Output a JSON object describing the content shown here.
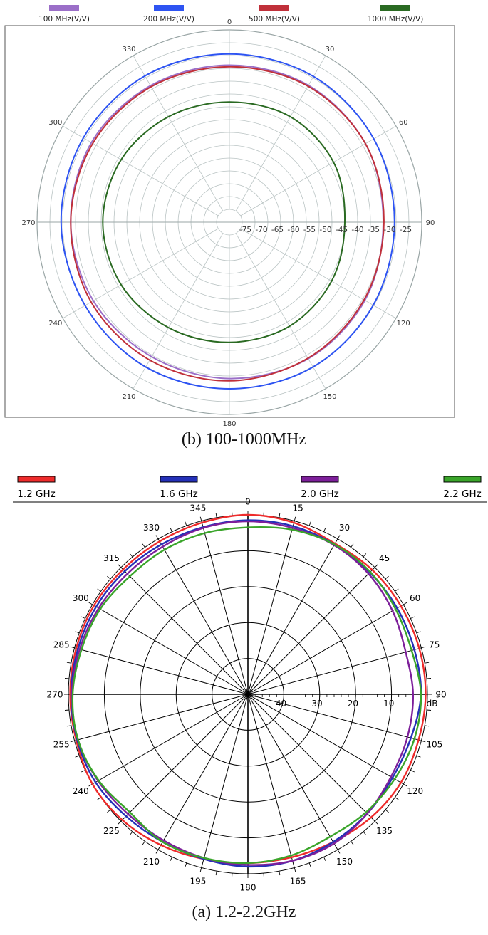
{
  "captions": {
    "top": "(b)    100-1000MHz",
    "bottom": "(a)    1.2-2.2GHz"
  },
  "chart_data": [
    {
      "type": "polar-line",
      "radial_labels": [
        "-75",
        "-70",
        "-65",
        "-60",
        "-55",
        "-50",
        "-45",
        "-40",
        "-35",
        "-30",
        "-25"
      ],
      "radial_range": [
        -80,
        -20
      ],
      "angle_labels": [
        "0",
        "30",
        "60",
        "90",
        "120",
        "150",
        "180",
        "210",
        "240",
        "270",
        "300",
        "330"
      ],
      "grid": true,
      "legend_position": "top",
      "series": [
        {
          "name": "100 MHz(V/V)",
          "color": "#9b6fc8",
          "angles": [
            0,
            30,
            60,
            90,
            120,
            150,
            180,
            210,
            240,
            270,
            300,
            330
          ],
          "values": [
            -31,
            -30.7,
            -31,
            -32,
            -31.2,
            -30.8,
            -31.2,
            -31.5,
            -31,
            -30.5,
            -30.3,
            -30.8
          ]
        },
        {
          "name": "200 MHz(V/V)",
          "color": "#2e54f2",
          "angles": [
            0,
            30,
            60,
            90,
            120,
            150,
            180,
            210,
            240,
            270,
            300,
            330
          ],
          "values": [
            -27.5,
            -27.5,
            -28,
            -28.5,
            -28.2,
            -27.8,
            -28,
            -27.8,
            -28,
            -27.5,
            -27.4,
            -27.3
          ]
        },
        {
          "name": "500 MHz(V/V)",
          "color": "#c0303a",
          "angles": [
            0,
            30,
            60,
            90,
            120,
            150,
            180,
            210,
            240,
            270,
            300,
            330
          ],
          "values": [
            -31.5,
            -31,
            -31,
            -31.8,
            -31.5,
            -31,
            -30.5,
            -30.3,
            -30.2,
            -30.5,
            -30.8,
            -31.2
          ]
        },
        {
          "name": "1000 MHz(V/V)",
          "color": "#2a6a22",
          "angles": [
            0,
            30,
            60,
            90,
            120,
            150,
            180,
            210,
            240,
            270,
            300,
            330
          ],
          "values": [
            -42.5,
            -42,
            -42.5,
            -44,
            -43.2,
            -42.5,
            -42.5,
            -42,
            -41,
            -40.5,
            -41,
            -42
          ]
        }
      ]
    },
    {
      "type": "polar-line",
      "radial_labels": [
        "-40",
        "-30",
        "-20",
        "-10",
        "dB"
      ],
      "radial_range": [
        -50,
        0
      ],
      "angle_labels": [
        "0",
        "15",
        "30",
        "45",
        "60",
        "75",
        "90",
        "105",
        "120",
        "135",
        "150",
        "165",
        "180",
        "195",
        "210",
        "225",
        "240",
        "255",
        "270",
        "285",
        "300",
        "315",
        "330",
        "345"
      ],
      "grid": true,
      "legend_position": "top",
      "series": [
        {
          "name": "1.2 GHz",
          "color": "#ee2b2b",
          "angles": [
            0,
            15,
            30,
            45,
            60,
            75,
            90,
            105,
            120,
            135,
            150,
            165,
            180,
            195,
            210,
            225,
            240,
            255,
            270,
            285,
            300,
            315,
            330,
            345
          ],
          "values": [
            0,
            -0.5,
            -1.5,
            -1,
            -0.8,
            -0.6,
            -0.5,
            -0.8,
            -0.8,
            -1.5,
            -2.5,
            -3,
            -3,
            -2.5,
            -1.5,
            -0.5,
            0,
            -0.5,
            -0.5,
            -0.5,
            -0.5,
            -0.8,
            -0.8,
            -0.5
          ]
        },
        {
          "name": "1.6 GHz",
          "color": "#2430b8",
          "angles": [
            0,
            15,
            30,
            45,
            60,
            75,
            90,
            105,
            120,
            135,
            150,
            165,
            180,
            195,
            210,
            225,
            240,
            255,
            270,
            285,
            300,
            315,
            330,
            345
          ],
          "values": [
            -1.5,
            -1.5,
            -1.8,
            -2,
            -2,
            -2,
            -1.8,
            -3,
            -3.5,
            -3,
            -2.5,
            -2,
            -2,
            -2.5,
            -2.5,
            -2,
            -1,
            -0.8,
            -0.8,
            -1,
            -1.2,
            -1.5,
            -1.8,
            -1.8
          ]
        },
        {
          "name": "2.0 GHz",
          "color": "#7d1f9a",
          "angles": [
            0,
            15,
            30,
            45,
            60,
            75,
            90,
            105,
            120,
            135,
            150,
            165,
            180,
            195,
            210,
            225,
            240,
            255,
            270,
            285,
            300,
            315,
            330,
            345
          ],
          "values": [
            -1.8,
            -2,
            -2,
            -2.5,
            -3.5,
            -4.5,
            -4,
            -4,
            -4,
            -3,
            -2,
            -2,
            -2.5,
            -2.8,
            -3,
            -2.8,
            -1.8,
            -1,
            -1,
            -1.5,
            -2,
            -2.5,
            -2.5,
            -2
          ]
        },
        {
          "name": "2.2 GHz",
          "color": "#3aa52a",
          "angles": [
            0,
            15,
            30,
            45,
            60,
            75,
            90,
            105,
            120,
            135,
            150,
            165,
            180,
            195,
            210,
            225,
            240,
            255,
            270,
            285,
            300,
            315,
            330,
            345
          ],
          "values": [
            -3.5,
            -2.5,
            -1.8,
            -1.8,
            -2.5,
            -2.8,
            -1.8,
            -2,
            -2.8,
            -3.5,
            -4.2,
            -3.5,
            -3,
            -2.8,
            -2.5,
            -3.5,
            -2,
            -1,
            -1.2,
            -2,
            -2.5,
            -3.5,
            -3.5,
            -3.5
          ]
        }
      ]
    }
  ]
}
